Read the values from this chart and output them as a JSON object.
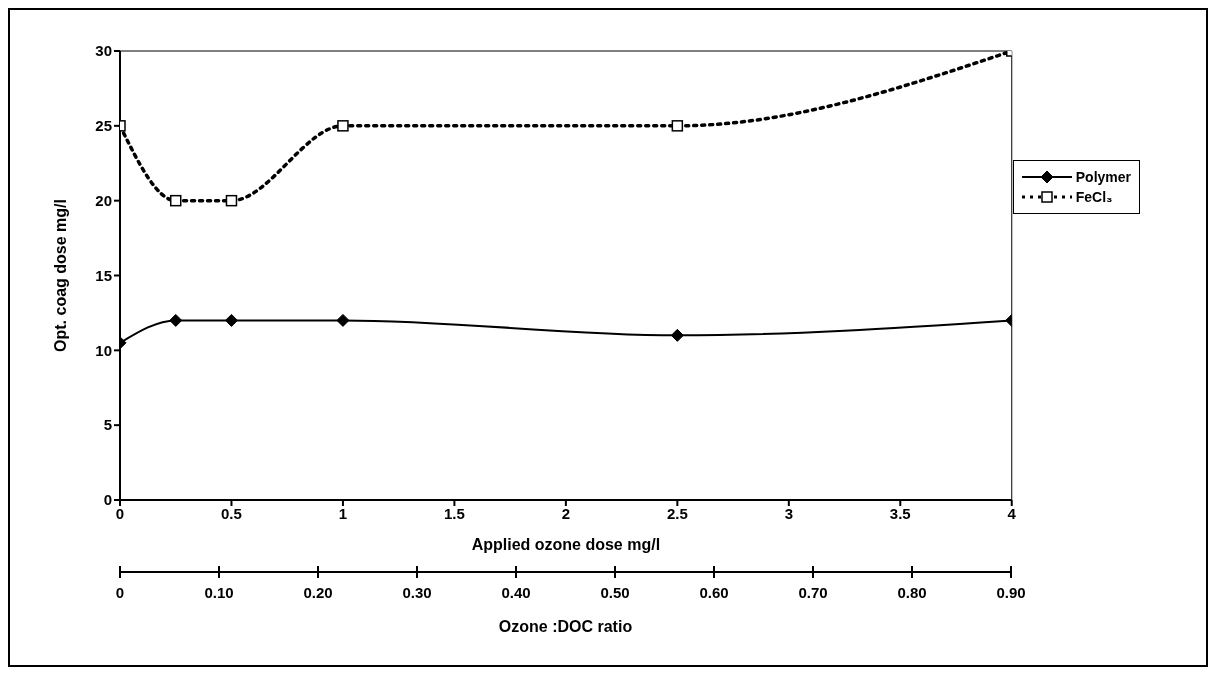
{
  "chart_data": {
    "type": "line",
    "xlabel": "Applied ozone dose mg/l",
    "ylabel": "Opt. coag dose mg/l",
    "x2label": "Ozone :DOC ratio",
    "x": [
      0,
      0.25,
      0.5,
      1,
      2.5,
      4
    ],
    "xlim": [
      0,
      4
    ],
    "xticks": [
      0,
      0.5,
      1,
      1.5,
      2,
      2.5,
      3,
      3.5,
      4
    ],
    "x2lim": [
      0,
      0.9
    ],
    "x2ticks": [
      0,
      {
        "value": 0.1,
        "label": "0.10"
      },
      {
        "value": 0.2,
        "label": "0.20"
      },
      {
        "value": 0.3,
        "label": "0.30"
      },
      {
        "value": 0.4,
        "label": "0.40"
      },
      {
        "value": 0.5,
        "label": "0.50"
      },
      {
        "value": 0.6,
        "label": "0.60"
      },
      {
        "value": 0.7,
        "label": "0.70"
      },
      {
        "value": 0.8,
        "label": "0.80"
      },
      {
        "value": 0.9,
        "label": "0.90"
      }
    ],
    "ylim": [
      0,
      30
    ],
    "yticks": [
      0,
      5,
      10,
      15,
      20,
      25,
      30
    ],
    "grid": false,
    "legend": "right",
    "series": [
      {
        "name": "Polymer",
        "color": "#000000",
        "marker": "diamond",
        "line_style": "solid",
        "values": [
          10.5,
          12,
          12,
          12,
          11,
          12
        ]
      },
      {
        "name": "FeCl₃",
        "color": "#000000",
        "marker": "square",
        "line_style": "dotted",
        "values": [
          25,
          20,
          20,
          25,
          25,
          30
        ]
      }
    ]
  }
}
